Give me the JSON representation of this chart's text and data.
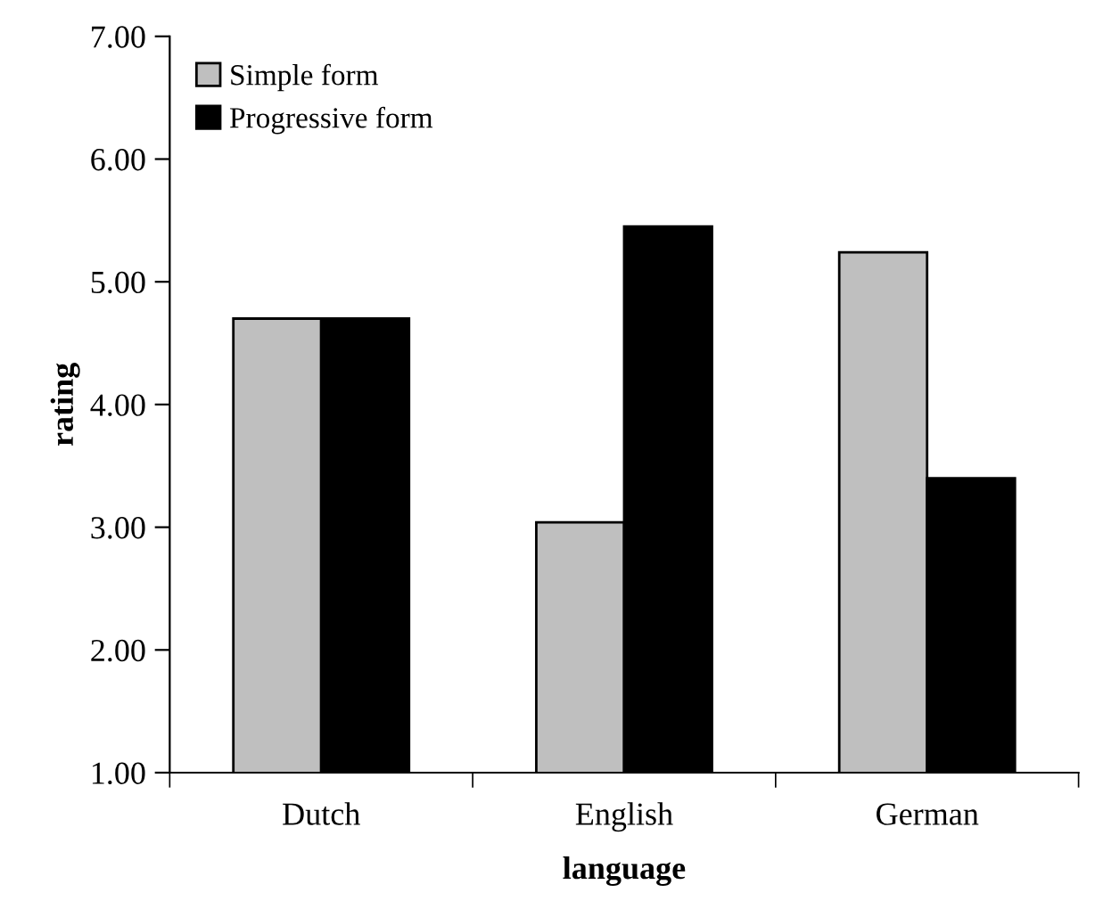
{
  "chart_data": {
    "type": "bar",
    "xlabel": "language",
    "ylabel": "rating",
    "categories": [
      "Dutch",
      "English",
      "German"
    ],
    "series": [
      {
        "name": "Simple form",
        "color": "#bfbfbf",
        "values": [
          4.7,
          3.04,
          5.24
        ]
      },
      {
        "name": "Progressive form",
        "color": "#000000",
        "values": [
          4.7,
          5.45,
          3.4
        ]
      }
    ],
    "ylim": [
      1,
      7
    ],
    "yticks": [
      {
        "value": 1,
        "label": "1.00"
      },
      {
        "value": 2,
        "label": "2.00"
      },
      {
        "value": 3,
        "label": "3.00"
      },
      {
        "value": 4,
        "label": "4.00"
      },
      {
        "value": 5,
        "label": "5.00"
      },
      {
        "value": 6,
        "label": "6.00"
      },
      {
        "value": 7,
        "label": "7.00"
      }
    ],
    "grid": false,
    "legend": "top left"
  }
}
